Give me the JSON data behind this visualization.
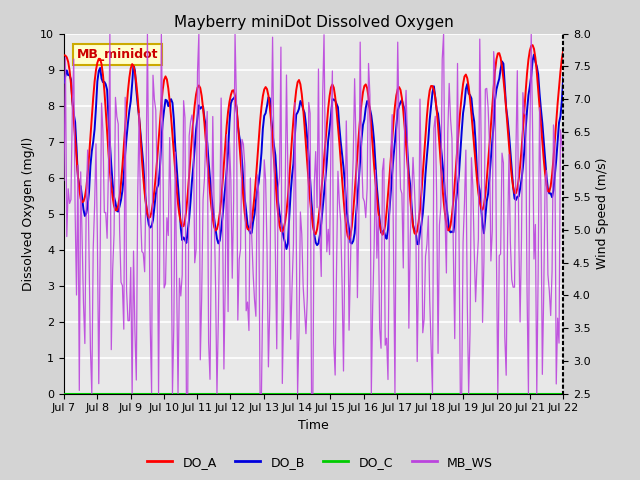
{
  "title": "Mayberry miniDot Dissolved Oxygen",
  "xlabel": "Time",
  "ylabel_left": "Dissolved Oxygen (mg/l)",
  "ylabel_right": "Wind Speed (m/s)",
  "annotation_text": "MB_minidot",
  "ylim_left": [
    0.0,
    10.0
  ],
  "ylim_right": [
    2.5,
    8.0
  ],
  "yticks_left": [
    0.0,
    1.0,
    2.0,
    3.0,
    4.0,
    5.0,
    6.0,
    7.0,
    8.0,
    9.0,
    10.0
  ],
  "yticks_right": [
    2.5,
    3.0,
    3.5,
    4.0,
    4.5,
    5.0,
    5.5,
    6.0,
    6.5,
    7.0,
    7.5,
    8.0
  ],
  "xtick_labels": [
    "Jul 7",
    "Jul 8",
    "Jul 9",
    "Jul 10",
    "Jul 11",
    "Jul 12",
    "Jul 13",
    "Jul 14",
    "Jul 15",
    "Jul 16",
    "Jul 17",
    "Jul 18",
    "Jul 19",
    "Jul 20",
    "Jul 21",
    "Jul 22"
  ],
  "color_DOA": "#ff0000",
  "color_DOB": "#0000dd",
  "color_DOC": "#00cc00",
  "color_MBWS": "#bb44dd",
  "fig_facecolor": "#d4d4d4",
  "axes_facecolor": "#e8e8e8",
  "grid_color": "#ffffff",
  "title_fontsize": 11,
  "label_fontsize": 9,
  "tick_fontsize": 8,
  "legend_fontsize": 9
}
